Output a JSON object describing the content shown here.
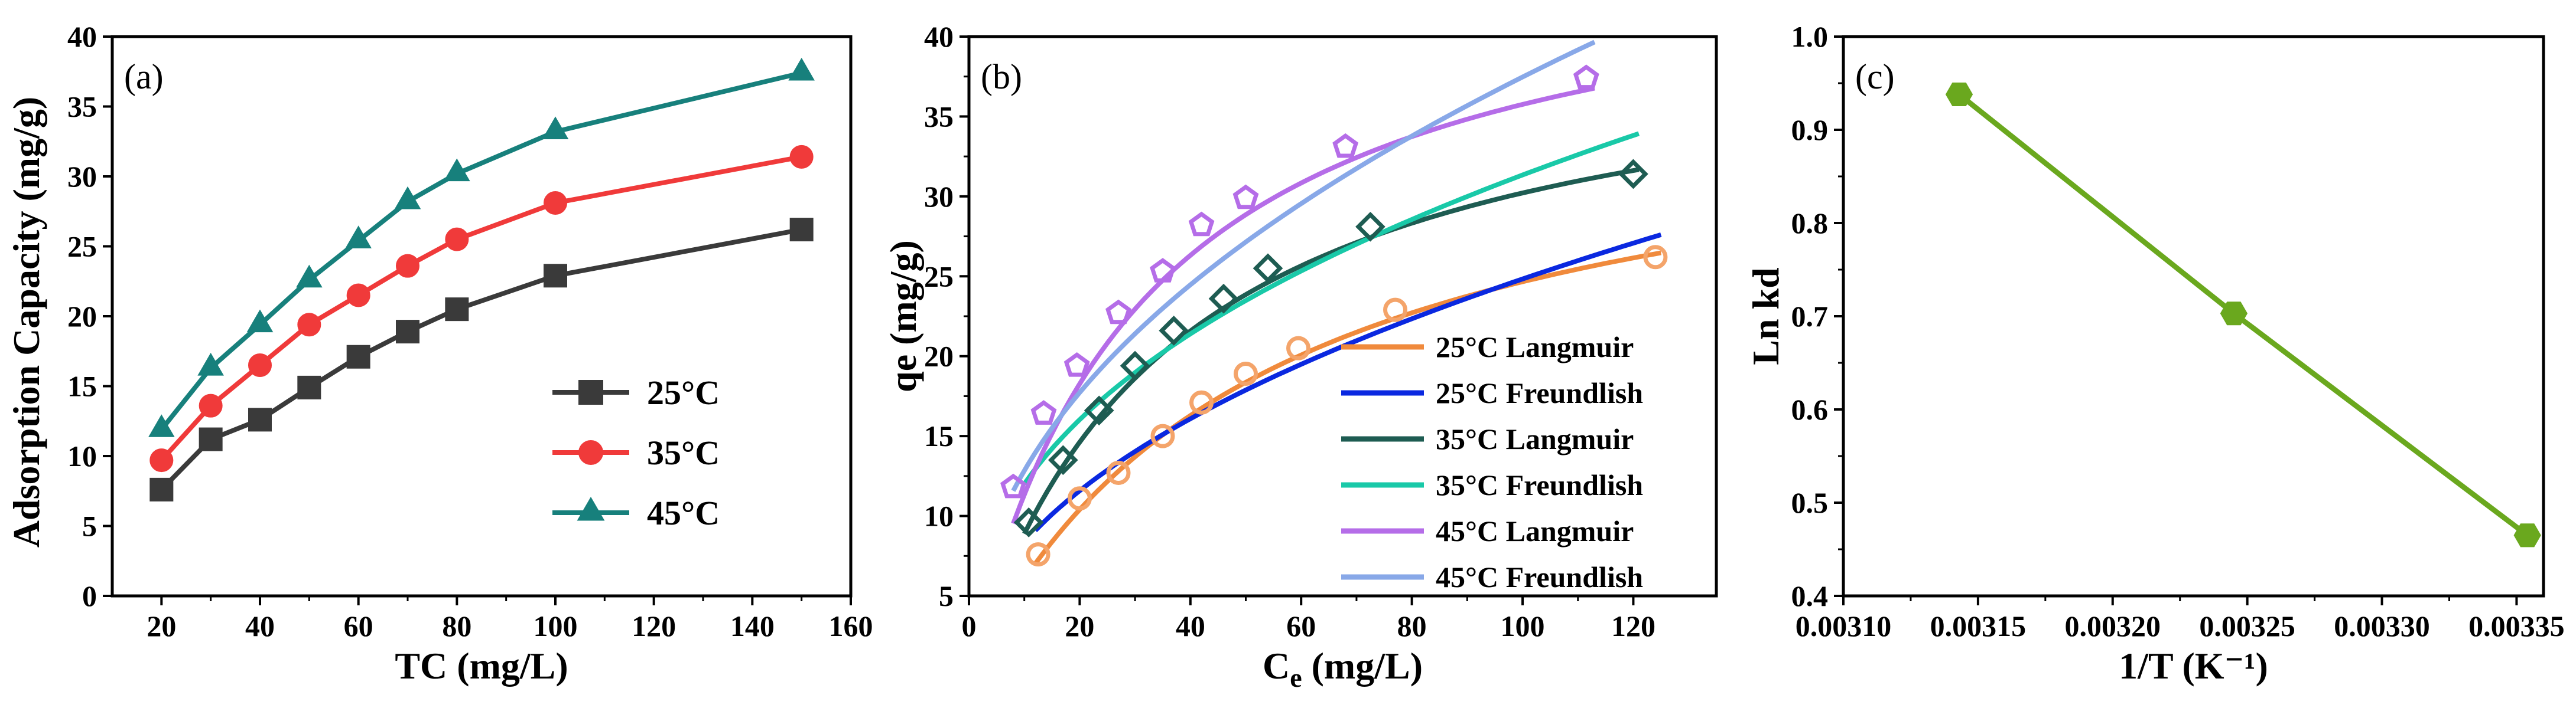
{
  "chart_data": [
    {
      "panel_tag": "(a)",
      "type": "line",
      "xlabel": "TC (mg/L)",
      "ylabel": "Adsorption Capacity (mg/g)",
      "xlim": [
        10,
        160
      ],
      "ylim": [
        0,
        40
      ],
      "xticks": [
        20,
        40,
        60,
        80,
        100,
        120,
        140,
        160
      ],
      "yticks": [
        0,
        5,
        10,
        15,
        20,
        25,
        30,
        35,
        40
      ],
      "grid": false,
      "legend_position": "bottom-right",
      "x": [
        20,
        30,
        40,
        50,
        60,
        70,
        80,
        100,
        150
      ],
      "series": [
        {
          "name": "25°C",
          "marker": "square",
          "color": "#3a3a3a",
          "values": [
            7.6,
            11.2,
            12.6,
            14.9,
            17.1,
            18.9,
            20.5,
            22.9,
            26.2
          ]
        },
        {
          "name": "35°C",
          "marker": "circle",
          "color": "#f03a3a",
          "values": [
            9.7,
            13.6,
            16.5,
            19.4,
            21.5,
            23.6,
            25.5,
            28.1,
            31.4
          ]
        },
        {
          "name": "45°C",
          "marker": "triangle",
          "color": "#17807c",
          "values": [
            11.9,
            16.3,
            19.4,
            22.6,
            25.4,
            28.2,
            30.2,
            33.2,
            37.4
          ]
        }
      ]
    },
    {
      "panel_tag": "(b)",
      "type": "scatter",
      "xlabel": "Ce (mg/L)",
      "xlabel_main": "C",
      "xlabel_sub": "e",
      "xlabel_unit": " (mg/L)",
      "ylabel": "qe (mg/g)",
      "xlim": [
        0,
        135
      ],
      "ylim": [
        5,
        40
      ],
      "xticks": [
        0,
        20,
        40,
        60,
        80,
        100,
        120
      ],
      "yticks": [
        5,
        10,
        15,
        20,
        25,
        30,
        35,
        40
      ],
      "grid": false,
      "legend_position": "bottom-right",
      "points": [
        {
          "temp": "25°C",
          "marker": "circle",
          "color": "#f4a46a",
          "x": [
            12.5,
            20,
            27,
            35,
            42,
            50,
            59.5,
            77,
            124
          ],
          "y": [
            7.6,
            11.1,
            12.7,
            15,
            17.1,
            18.9,
            20.5,
            22.9,
            26.2
          ]
        },
        {
          "temp": "35°C",
          "marker": "diamond",
          "color": "#1e5c52",
          "x": [
            10.8,
            17,
            23.5,
            30,
            37,
            46,
            54,
            72.5,
            120
          ],
          "y": [
            9.6,
            13.5,
            16.6,
            19.4,
            21.6,
            23.6,
            25.5,
            28.1,
            31.4
          ]
        },
        {
          "temp": "45°C",
          "marker": "pentagon",
          "color": "#b56de8",
          "x": [
            8,
            13.5,
            19.5,
            27,
            35,
            42,
            50,
            68,
            111.5
          ],
          "y": [
            11.8,
            16.4,
            19.4,
            22.7,
            25.3,
            28.2,
            29.9,
            33.1,
            37.4
          ]
        }
      ],
      "fits": [
        {
          "name": "25°C Langmuir",
          "model": "langmuir",
          "color": "#f08a3c",
          "qm": 37.5,
          "kl": 0.0192,
          "xrange": [
            12,
            125
          ]
        },
        {
          "name": "25°C Freundlish",
          "model": "freundlich",
          "color": "#0a28e0",
          "kf": 2.8,
          "n": 2.11,
          "xrange": [
            12,
            125
          ]
        },
        {
          "name": "35°C Langmuir",
          "model": "langmuir",
          "color": "#1e5c52",
          "qm": 41.2,
          "kl": 0.0275,
          "xrange": [
            10,
            121
          ]
        },
        {
          "name": "35°C Freundlish",
          "model": "freundlich",
          "color": "#19c9a8",
          "kf": 4.6,
          "n": 2.4,
          "xrange": [
            10,
            121
          ]
        },
        {
          "name": "45°C Langmuir",
          "model": "langmuir",
          "color": "#b56de8",
          "qm": 47.0,
          "kl": 0.0318,
          "xrange": [
            8,
            113
          ]
        },
        {
          "name": "45°C Freundlish",
          "model": "freundlich",
          "color": "#88a8e8",
          "kf": 4.4,
          "n": 2.15,
          "xrange": [
            8,
            113
          ]
        }
      ]
    },
    {
      "panel_tag": "(c)",
      "type": "line",
      "xlabel": "1/T (K⁻¹)",
      "ylabel": "Ln kd",
      "xlim": [
        0.0031,
        0.00336
      ],
      "ylim": [
        0.4,
        1.0
      ],
      "xticks": [
        0.0031,
        0.00315,
        0.0032,
        0.00325,
        0.0033,
        0.00335
      ],
      "xtick_labels": [
        "0.00310",
        "0.00315",
        "0.00320",
        "0.00325",
        "0.00330",
        "0.00335"
      ],
      "yticks": [
        0.4,
        0.5,
        0.6,
        0.7,
        0.8,
        0.9,
        1.0
      ],
      "ytick_labels": [
        "0.4",
        "0.5",
        "0.6",
        "0.7",
        "0.8",
        "0.9",
        "1.0"
      ],
      "grid": false,
      "color": "#6aa81e",
      "marker": "hexagon",
      "x": [
        0.003143,
        0.003245,
        0.003354
      ],
      "y": [
        0.938,
        0.703,
        0.465
      ]
    }
  ]
}
